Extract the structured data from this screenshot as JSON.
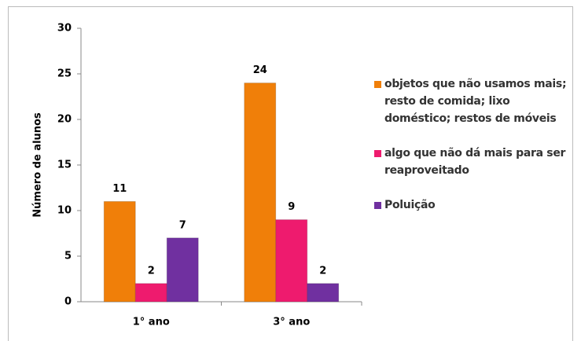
{
  "chart_data": {
    "type": "bar",
    "categories": [
      "1° ano",
      "3° ano"
    ],
    "series": [
      {
        "name": "objetos que não usamos mais; resto de comida; lixo doméstico; restos de móveis",
        "color": "#f07f09",
        "values": [
          11,
          24
        ]
      },
      {
        "name": "algo que não dá mais para ser reaproveitado",
        "color": "#ee1b6e",
        "values": [
          2,
          9
        ]
      },
      {
        "name": "Poluição",
        "color": "#7030a0",
        "values": [
          7,
          2
        ]
      }
    ],
    "ylabel": "Número de alunos",
    "ylim": [
      0,
      30
    ],
    "yticks": [
      0,
      5,
      10,
      15,
      20,
      25,
      30
    ],
    "grid": false,
    "legend": "right"
  }
}
